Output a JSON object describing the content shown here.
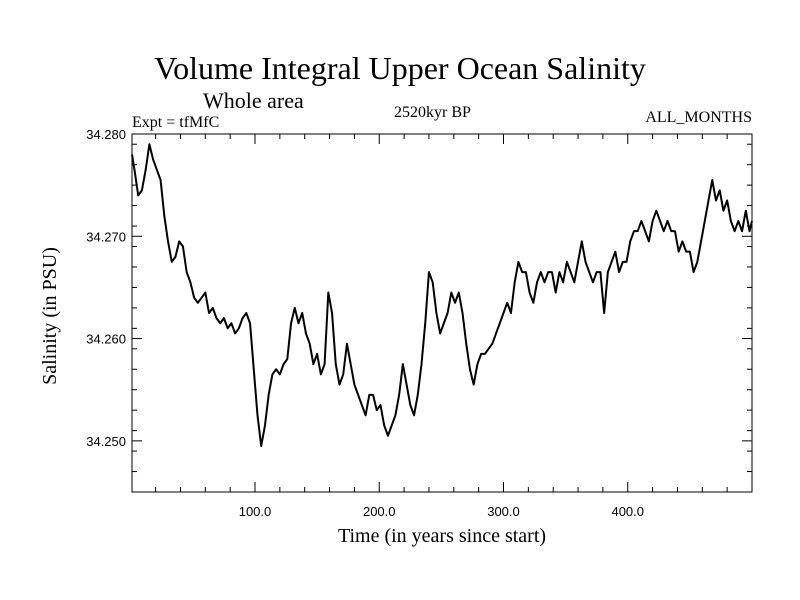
{
  "chart_data": {
    "type": "line",
    "title": "Volume Integral Upper Ocean Salinity",
    "subtitle": "Whole area",
    "left_note": "Expt = tfMfC",
    "center_note": "2520kyr BP",
    "right_note": "ALL_MONTHS",
    "xlabel": "Time (in years since start)",
    "ylabel": "Salinity (in PSU)",
    "xlim": [
      1,
      500
    ],
    "ylim": [
      34.245,
      34.28
    ],
    "xticks": [
      100,
      200,
      300,
      400
    ],
    "xtick_labels": [
      "100.0",
      "200.0",
      "300.0",
      "400.0"
    ],
    "yticks": [
      34.25,
      34.26,
      34.27,
      34.28
    ],
    "ytick_labels": [
      "34.250",
      "34.260",
      "34.270",
      "34.280"
    ],
    "grid": false,
    "series": [
      {
        "name": "Salinity",
        "x": [
          1,
          3,
          6,
          9,
          12,
          15,
          18,
          21,
          24,
          27,
          30,
          33,
          36,
          39,
          42,
          45,
          48,
          51,
          54,
          57,
          60,
          63,
          66,
          69,
          72,
          75,
          78,
          81,
          84,
          87,
          90,
          93,
          96,
          99,
          102,
          105,
          108,
          111,
          114,
          117,
          120,
          123,
          126,
          129,
          132,
          135,
          138,
          141,
          144,
          147,
          150,
          153,
          156,
          159,
          162,
          165,
          168,
          171,
          174,
          177,
          180,
          183,
          186,
          189,
          192,
          195,
          198,
          201,
          204,
          207,
          210,
          213,
          216,
          219,
          222,
          225,
          228,
          231,
          234,
          237,
          240,
          243,
          246,
          249,
          252,
          255,
          258,
          261,
          264,
          267,
          270,
          273,
          276,
          279,
          282,
          285,
          288,
          291,
          294,
          297,
          300,
          303,
          306,
          309,
          312,
          315,
          318,
          321,
          324,
          327,
          330,
          333,
          336,
          339,
          342,
          345,
          348,
          351,
          354,
          357,
          360,
          363,
          366,
          369,
          372,
          375,
          378,
          381,
          384,
          387,
          390,
          393,
          396,
          399,
          402,
          405,
          408,
          411,
          414,
          417,
          420,
          423,
          426,
          429,
          432,
          435,
          438,
          441,
          444,
          447,
          450,
          453,
          456,
          459,
          462,
          465,
          468,
          471,
          474,
          477,
          480,
          483,
          486,
          489,
          492,
          495,
          498,
          500
        ],
        "values": [
          34.278,
          34.2765,
          34.274,
          34.2745,
          34.2765,
          34.279,
          34.2775,
          34.2765,
          34.2755,
          34.272,
          34.2695,
          34.2675,
          34.268,
          34.2695,
          34.269,
          34.2665,
          34.2655,
          34.264,
          34.2635,
          34.264,
          34.2645,
          34.2625,
          34.263,
          34.262,
          34.2615,
          34.262,
          34.261,
          34.2615,
          34.2605,
          34.261,
          34.262,
          34.2625,
          34.2615,
          34.257,
          34.2525,
          34.2495,
          34.2515,
          34.2545,
          34.2565,
          34.257,
          34.2565,
          34.2575,
          34.258,
          34.2615,
          34.263,
          34.2615,
          34.2625,
          34.2605,
          34.2595,
          34.2575,
          34.2585,
          34.2565,
          34.2575,
          34.2645,
          34.2625,
          34.2575,
          34.2555,
          34.2565,
          34.2595,
          34.2575,
          34.2555,
          34.2545,
          34.2535,
          34.2525,
          34.2545,
          34.2545,
          34.253,
          34.2535,
          34.2515,
          34.2505,
          34.2515,
          34.2525,
          34.2545,
          34.2575,
          34.2555,
          34.2535,
          34.2525,
          34.2545,
          34.2575,
          34.2615,
          34.2665,
          34.2655,
          34.2625,
          34.2605,
          34.2615,
          34.2625,
          34.2645,
          34.2635,
          34.2645,
          34.2625,
          34.2595,
          34.257,
          34.2555,
          34.2575,
          34.2585,
          34.2585,
          34.259,
          34.2595,
          34.2605,
          34.2615,
          34.2625,
          34.2635,
          34.2625,
          34.2655,
          34.2675,
          34.2665,
          34.2665,
          34.2645,
          34.2635,
          34.2655,
          34.2665,
          34.2655,
          34.2665,
          34.2665,
          34.2645,
          34.2665,
          34.2655,
          34.2675,
          34.2665,
          34.2655,
          34.2675,
          34.2695,
          34.2675,
          34.2665,
          34.2655,
          34.2665,
          34.2665,
          34.2625,
          34.2665,
          34.2675,
          34.2685,
          34.2665,
          34.2675,
          34.2675,
          34.2695,
          34.2705,
          34.2705,
          34.2715,
          34.2705,
          34.2695,
          34.2715,
          34.2725,
          34.2715,
          34.2705,
          34.2715,
          34.2705,
          34.2705,
          34.2685,
          34.2695,
          34.2685,
          34.2685,
          34.2665,
          34.2675,
          34.2695,
          34.2715,
          34.2735,
          34.2755,
          34.2735,
          34.2745,
          34.2725,
          34.2735,
          34.2715,
          34.2705,
          34.2715,
          34.2705,
          34.2725,
          34.2705,
          34.2715
        ]
      }
    ]
  }
}
